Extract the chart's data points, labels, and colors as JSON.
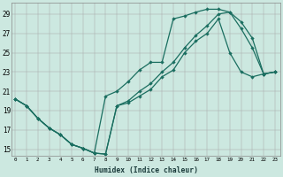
{
  "xlabel": "Humidex (Indice chaleur)",
  "background_color": "#cce8e0",
  "grid_color": "#aaaaaa",
  "line_color": "#1a6e60",
  "x_ticks": [
    0,
    1,
    2,
    3,
    4,
    5,
    6,
    7,
    8,
    9,
    10,
    11,
    12,
    13,
    14,
    15,
    16,
    17,
    18,
    19,
    20,
    21,
    22,
    23
  ],
  "y_ticks": [
    15,
    17,
    19,
    21,
    23,
    25,
    27,
    29
  ],
  "xlim": [
    -0.3,
    23.5
  ],
  "ylim": [
    14.3,
    30.2
  ],
  "series1_x": [
    0,
    1,
    2,
    3,
    4,
    5,
    6,
    7,
    8,
    9,
    10,
    11,
    12,
    13,
    14,
    15,
    16,
    17,
    18,
    19,
    20,
    21,
    22,
    23
  ],
  "series1_y": [
    20.2,
    19.5,
    18.2,
    17.2,
    16.5,
    15.5,
    15.1,
    14.6,
    14.5,
    19.5,
    19.8,
    20.5,
    21.2,
    22.5,
    23.2,
    25.0,
    26.2,
    27.0,
    28.5,
    25.0,
    23.0,
    22.5,
    22.8,
    23.0
  ],
  "series2_x": [
    0,
    1,
    2,
    3,
    4,
    5,
    6,
    7,
    8,
    9,
    10,
    11,
    12,
    13,
    14,
    15,
    16,
    17,
    18,
    19,
    20,
    21,
    22,
    23
  ],
  "series2_y": [
    20.2,
    19.5,
    18.2,
    17.2,
    16.5,
    15.5,
    15.1,
    14.6,
    20.5,
    21.0,
    22.0,
    23.2,
    24.0,
    24.0,
    28.5,
    28.8,
    29.2,
    29.5,
    29.5,
    29.2,
    27.5,
    25.5,
    22.8,
    23.0
  ],
  "series3_x": [
    0,
    1,
    2,
    3,
    4,
    5,
    6,
    7,
    8,
    9,
    10,
    11,
    12,
    13,
    14,
    15,
    16,
    17,
    18,
    19,
    20,
    21,
    22,
    23
  ],
  "series3_y": [
    20.2,
    19.5,
    18.2,
    17.2,
    16.5,
    15.5,
    15.1,
    14.6,
    14.5,
    19.5,
    20.0,
    21.0,
    21.8,
    23.0,
    24.0,
    25.5,
    26.8,
    27.8,
    29.0,
    29.2,
    28.2,
    26.5,
    22.8,
    23.0
  ]
}
